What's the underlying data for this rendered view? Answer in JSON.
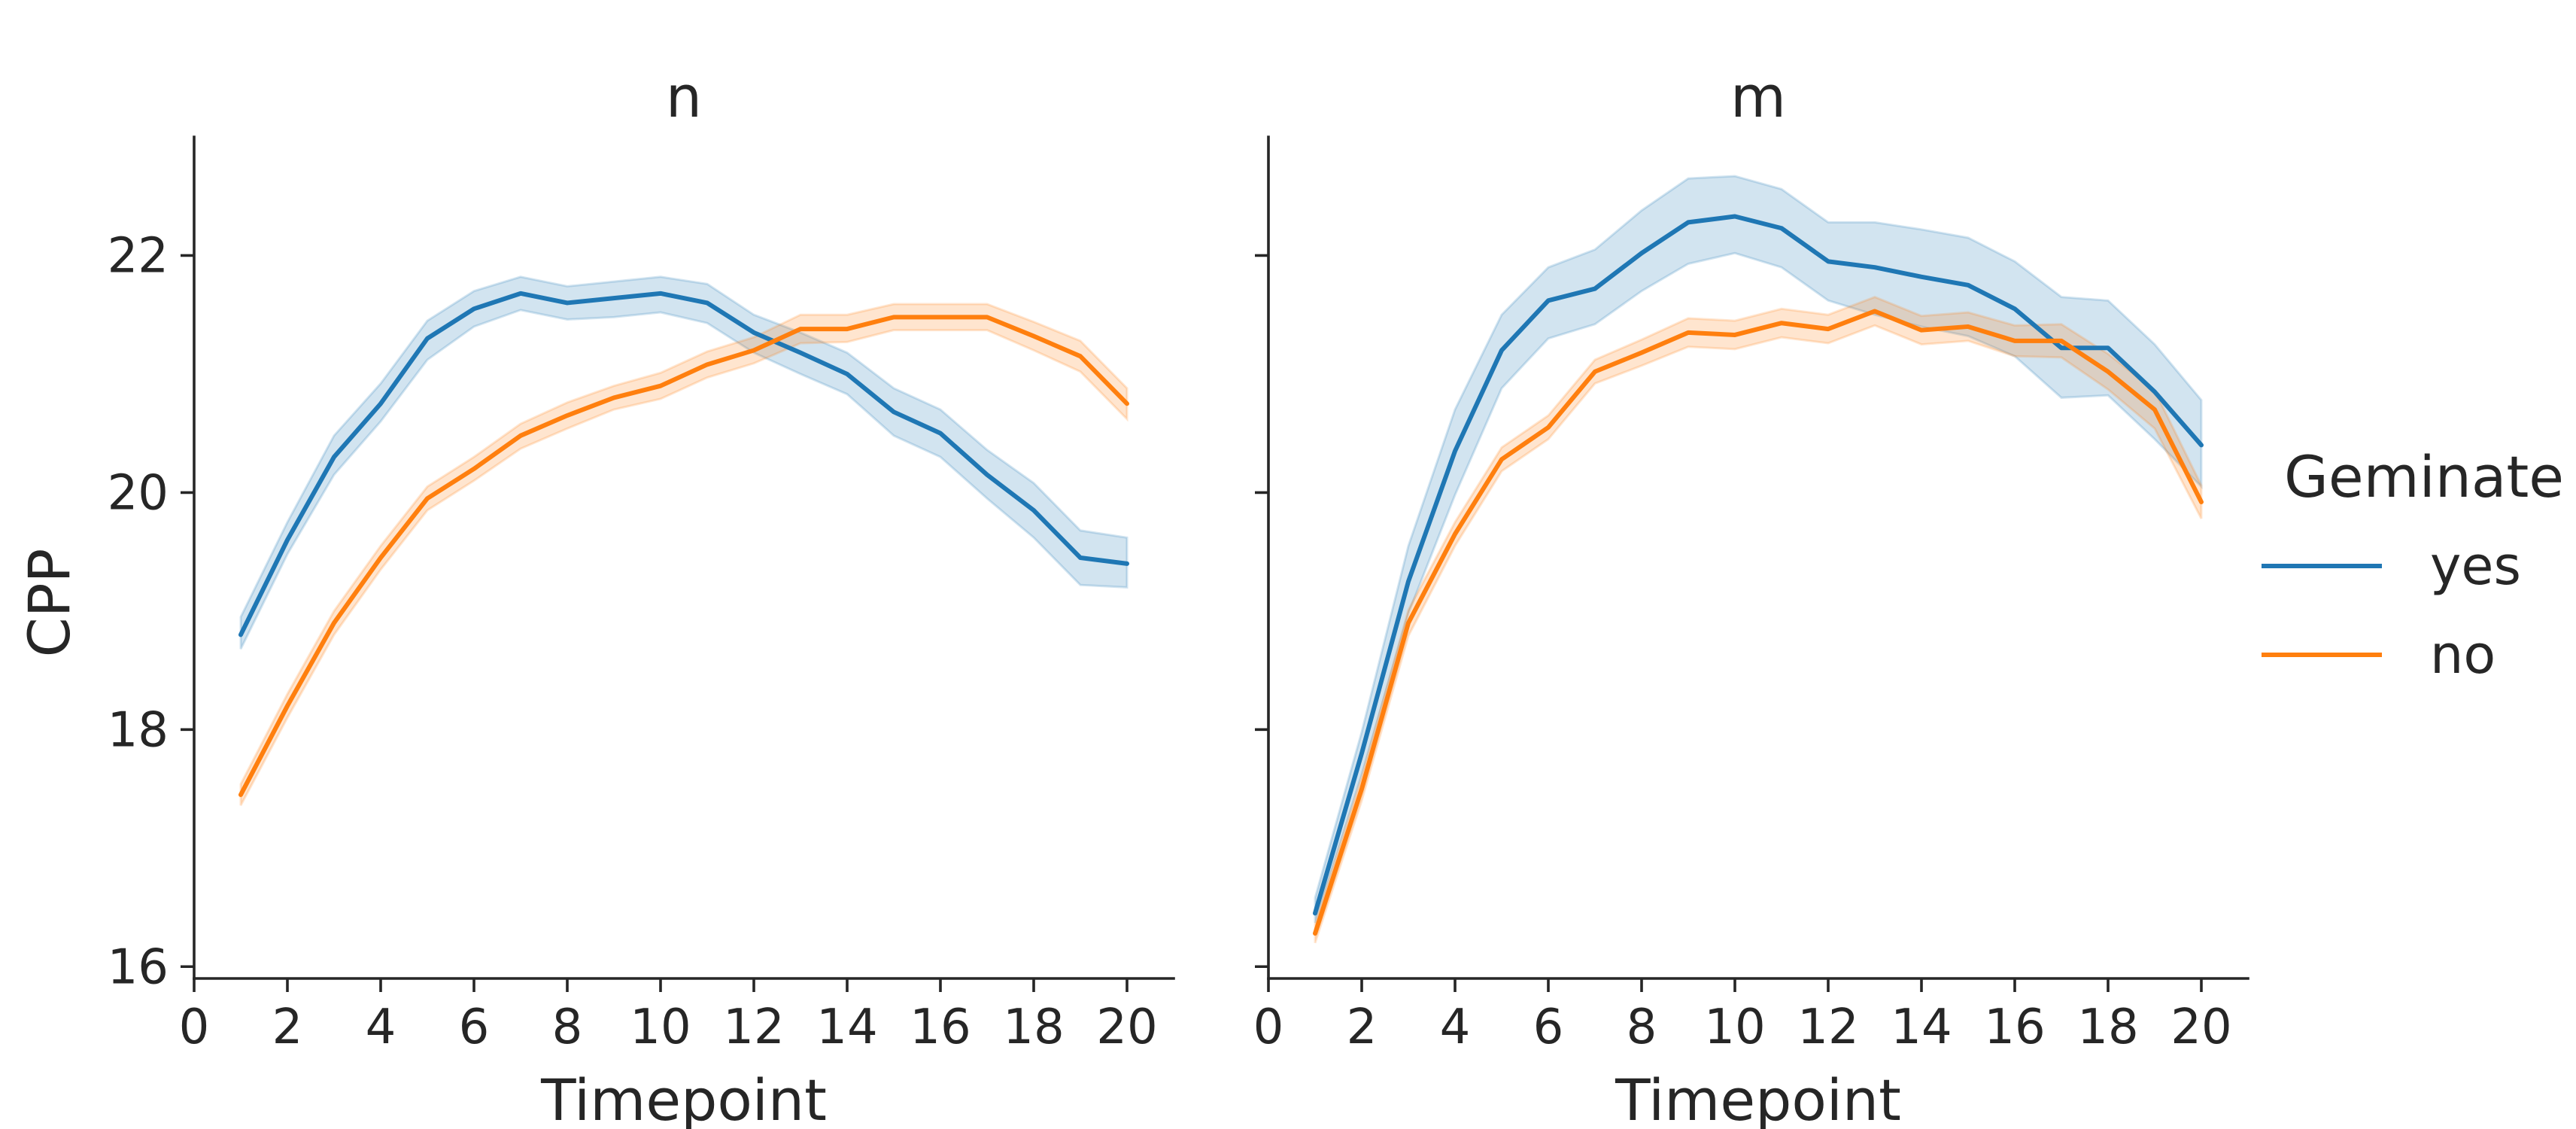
{
  "chart_data": {
    "type": "line",
    "ylabel": "CPP",
    "xlabel": "Timepoint",
    "xlim": [
      0,
      21
    ],
    "ylim": [
      15.9,
      23
    ],
    "xticks": [
      "0",
      "2",
      "4",
      "6",
      "8",
      "10",
      "12",
      "14",
      "16",
      "18",
      "20"
    ],
    "yticks": [
      "16",
      "18",
      "20",
      "22"
    ],
    "x": [
      1,
      2,
      3,
      4,
      5,
      6,
      7,
      8,
      9,
      10,
      11,
      12,
      13,
      14,
      15,
      16,
      17,
      18,
      19,
      20
    ],
    "legend": {
      "title": "Geminate",
      "position": "right"
    },
    "series_styles": [
      {
        "name": "yes",
        "color": "#1f77b4"
      },
      {
        "name": "no",
        "color": "#ff7f0e"
      }
    ],
    "panels": [
      {
        "title": "n",
        "series": [
          {
            "name": "yes",
            "values": [
              18.8,
              19.6,
              20.3,
              20.75,
              21.3,
              21.55,
              21.68,
              21.6,
              21.64,
              21.68,
              21.6,
              21.35,
              21.18,
              21.0,
              20.68,
              20.5,
              20.15,
              19.85,
              19.45,
              19.4
            ],
            "lower": [
              18.68,
              19.48,
              20.15,
              20.6,
              21.12,
              21.4,
              21.54,
              21.46,
              21.48,
              21.52,
              21.43,
              21.18,
              21.0,
              20.83,
              20.48,
              20.3,
              19.95,
              19.62,
              19.22,
              19.2
            ],
            "upper": [
              18.95,
              19.75,
              20.48,
              20.92,
              21.45,
              21.7,
              21.82,
              21.74,
              21.78,
              21.82,
              21.76,
              21.5,
              21.35,
              21.18,
              20.88,
              20.7,
              20.36,
              20.08,
              19.68,
              19.62
            ]
          },
          {
            "name": "no",
            "values": [
              17.45,
              18.2,
              18.9,
              19.45,
              19.95,
              20.2,
              20.48,
              20.65,
              20.8,
              20.9,
              21.08,
              21.2,
              21.38,
              21.38,
              21.48,
              21.48,
              21.48,
              21.32,
              21.15,
              20.75
            ],
            "lower": [
              17.36,
              18.1,
              18.8,
              19.35,
              19.85,
              20.1,
              20.37,
              20.54,
              20.7,
              20.79,
              20.97,
              21.09,
              21.26,
              21.27,
              21.37,
              21.37,
              21.37,
              21.2,
              21.02,
              20.62
            ],
            "upper": [
              17.54,
              18.3,
              19.0,
              19.55,
              20.05,
              20.3,
              20.58,
              20.76,
              20.9,
              21.01,
              21.19,
              21.31,
              21.5,
              21.5,
              21.59,
              21.59,
              21.59,
              21.44,
              21.28,
              20.88
            ]
          }
        ]
      },
      {
        "title": "m",
        "series": [
          {
            "name": "yes",
            "values": [
              16.45,
              17.8,
              19.25,
              20.35,
              21.2,
              21.62,
              21.72,
              22.02,
              22.28,
              22.33,
              22.23,
              21.95,
              21.9,
              21.82,
              21.75,
              21.55,
              21.22,
              21.22,
              20.85,
              20.4
            ],
            "lower": [
              16.37,
              17.62,
              18.98,
              19.98,
              20.88,
              21.3,
              21.42,
              21.7,
              21.93,
              22.02,
              21.9,
              21.62,
              21.5,
              21.4,
              21.32,
              21.15,
              20.8,
              20.82,
              20.45,
              20.05
            ],
            "upper": [
              16.58,
              17.98,
              19.55,
              20.7,
              21.5,
              21.9,
              22.05,
              22.38,
              22.65,
              22.67,
              22.56,
              22.28,
              22.28,
              22.22,
              22.15,
              21.95,
              21.65,
              21.62,
              21.25,
              20.78
            ]
          },
          {
            "name": "no",
            "values": [
              16.28,
              17.5,
              18.9,
              19.65,
              20.28,
              20.55,
              21.02,
              21.18,
              21.35,
              21.33,
              21.43,
              21.38,
              21.53,
              21.37,
              21.4,
              21.28,
              21.28,
              21.02,
              20.7,
              19.92
            ],
            "lower": [
              16.2,
              17.4,
              18.79,
              19.55,
              20.18,
              20.45,
              20.92,
              21.07,
              21.23,
              21.21,
              21.31,
              21.26,
              21.41,
              21.25,
              21.28,
              21.15,
              21.14,
              20.87,
              20.54,
              19.78
            ],
            "upper": [
              16.36,
              17.6,
              19.01,
              19.75,
              20.38,
              20.65,
              21.12,
              21.29,
              21.47,
              21.45,
              21.55,
              21.5,
              21.65,
              21.49,
              21.52,
              21.41,
              21.42,
              21.17,
              20.86,
              20.06
            ]
          }
        ]
      }
    ]
  }
}
